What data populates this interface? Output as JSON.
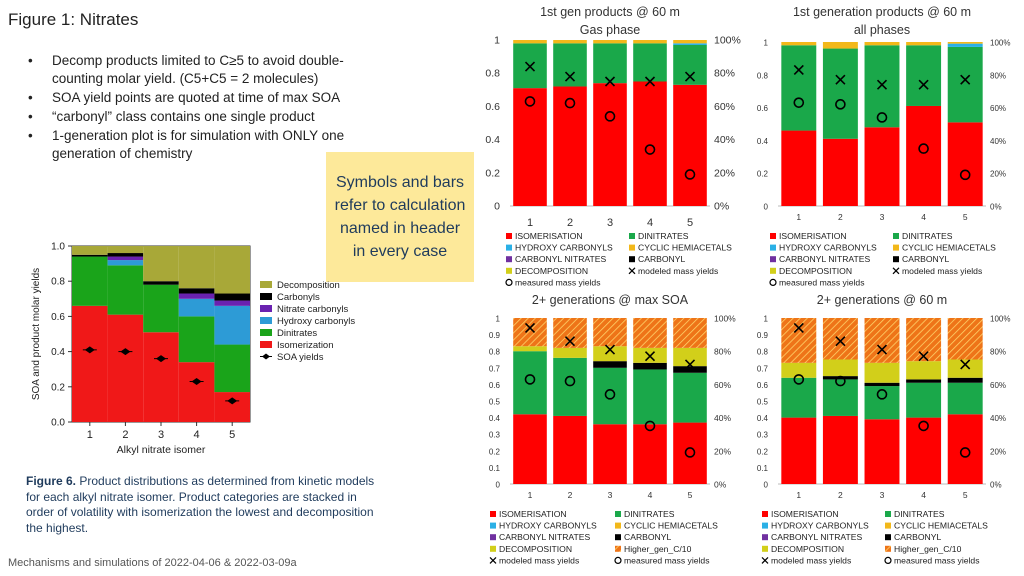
{
  "title": "Figure 1: Nitrates",
  "bullets": [
    "Decomp products limited to C≥5 to avoid double-counting molar yield. (C5+C5 = 2 molecules)",
    "SOA yield points are quoted at time of max SOA",
    "“carbonyl” class contains one single product",
    "1-generation plot is for simulation with ONLY one generation of chemistry"
  ],
  "note": "Symbols and bars refer to calculation named in header in every case",
  "footer": "Mechanisms and simulations of 2022-04-06  & 2022-03-09a",
  "caption": {
    "lead": "Figure 6.",
    "text": "Product distributions as determined from kinetic models for each alkyl nitrate isomer. Product categories are stacked in order of volatility with isomerization the lowest and decomposition the highest."
  },
  "colors": {
    "isomerisation": "#ff0000",
    "dinitrates": "#1aa84a",
    "hydroxy_carbonyls": "#2ab0e6",
    "cyclic_hemiacetals": "#f2b81a",
    "carbonyl_nitrates": "#7030a0",
    "carbonyl": "#000000",
    "decomposition": "#d2cf1a",
    "higher_gen": "#ee7418",
    "pub_decomposition": "#a8a838",
    "pub_carbonyls": "#000000",
    "pub_nitrate_carbonyls": "#6a22b0",
    "pub_hydroxy_carbonyls": "#2d9bd6",
    "pub_dinitrates": "#1aa41a",
    "pub_isomerization": "#f01818"
  },
  "chart_data": [
    {
      "type": "bar",
      "stacked": true,
      "title": "Figure 6.",
      "xlabel": "Alkyl nitrate isomer",
      "ylabel": "SOA and product molar yields",
      "categories": [
        "1",
        "2",
        "3",
        "4",
        "5"
      ],
      "ylim": [
        0,
        1
      ],
      "yticks": [
        "0.0",
        "0.2",
        "0.4",
        "0.6",
        "0.8",
        "1.0"
      ],
      "legend_position": "right",
      "series": [
        {
          "name": "Isomerization",
          "values": [
            0.66,
            0.61,
            0.51,
            0.34,
            0.17
          ]
        },
        {
          "name": "Dinitrates",
          "values": [
            0.28,
            0.28,
            0.27,
            0.26,
            0.27
          ]
        },
        {
          "name": "Hydroxy carbonyls",
          "values": [
            0.0,
            0.03,
            0.0,
            0.1,
            0.22
          ]
        },
        {
          "name": "Nitrate carbonyls",
          "values": [
            0.0,
            0.02,
            0.0,
            0.03,
            0.03
          ]
        },
        {
          "name": "Carbonyls",
          "values": [
            0.01,
            0.02,
            0.02,
            0.03,
            0.04
          ]
        },
        {
          "name": "Decomposition",
          "values": [
            0.05,
            0.04,
            0.2,
            0.24,
            0.27
          ]
        }
      ],
      "markers": {
        "name": "SOA yields",
        "values": [
          0.41,
          0.4,
          0.36,
          0.23,
          0.12
        ]
      }
    },
    {
      "type": "bar",
      "stacked": true,
      "title": "1st gen products @ 60 m\nGas phase",
      "categories": [
        "1",
        "2",
        "3",
        "4",
        "5"
      ],
      "ylim": [
        0,
        1
      ],
      "yticks_left": [
        "0",
        "0.2",
        "0.4",
        "0.6",
        "0.8",
        "1"
      ],
      "yticks_right": [
        "0%",
        "20%",
        "40%",
        "60%",
        "80%",
        "100%"
      ],
      "series": [
        {
          "name": "ISOMERISATION",
          "values": [
            0.71,
            0.72,
            0.74,
            0.75,
            0.73
          ]
        },
        {
          "name": "DINITRATES",
          "values": [
            0.27,
            0.26,
            0.24,
            0.23,
            0.24
          ]
        },
        {
          "name": "HYDROXY CARBONYLS",
          "values": [
            0.0,
            0.0,
            0.0,
            0.0,
            0.01
          ]
        },
        {
          "name": "CYCLIC HEMIACETALS",
          "values": [
            0.02,
            0.02,
            0.02,
            0.02,
            0.02
          ]
        },
        {
          "name": "CARBONYL NITRATES",
          "values": [
            0,
            0,
            0,
            0,
            0
          ]
        },
        {
          "name": "CARBONYL",
          "values": [
            0,
            0,
            0,
            0,
            0
          ]
        },
        {
          "name": "DECOMPOSITION",
          "values": [
            0,
            0,
            0,
            0,
            0
          ]
        }
      ],
      "modeled_mass_yields": {
        "name": "modeled mass yields",
        "values": [
          0.84,
          0.78,
          0.75,
          0.75,
          0.78
        ]
      },
      "measured_mass_yields": {
        "name": "measured mass yields",
        "values": [
          0.63,
          0.62,
          0.54,
          0.34,
          0.19
        ]
      }
    },
    {
      "type": "bar",
      "stacked": true,
      "title": "1st generation products @ 60 m\nall phases",
      "categories": [
        "1",
        "2",
        "3",
        "4",
        "5"
      ],
      "ylim": [
        0,
        1
      ],
      "yticks_left": [
        "0",
        "0.2",
        "0.4",
        "0.6",
        "0.8",
        "1"
      ],
      "yticks_right": [
        "0%",
        "20%",
        "40%",
        "60%",
        "80%",
        "100%"
      ],
      "series": [
        {
          "name": "ISOMERISATION",
          "values": [
            0.46,
            0.41,
            0.48,
            0.61,
            0.51
          ]
        },
        {
          "name": "DINITRATES",
          "values": [
            0.52,
            0.55,
            0.5,
            0.37,
            0.46
          ]
        },
        {
          "name": "HYDROXY CARBONYLS",
          "values": [
            0.0,
            0.0,
            0.0,
            0.0,
            0.02
          ]
        },
        {
          "name": "CYCLIC HEMIACETALS",
          "values": [
            0.02,
            0.04,
            0.02,
            0.02,
            0.01
          ]
        },
        {
          "name": "CARBONYL NITRATES",
          "values": [
            0,
            0,
            0,
            0,
            0
          ]
        },
        {
          "name": "CARBONYL",
          "values": [
            0,
            0,
            0,
            0,
            0
          ]
        },
        {
          "name": "DECOMPOSITION",
          "values": [
            0,
            0,
            0,
            0,
            0
          ]
        }
      ],
      "modeled_mass_yields": {
        "name": "modeled mass yields",
        "values": [
          0.83,
          0.77,
          0.74,
          0.74,
          0.77
        ]
      },
      "measured_mass_yields": {
        "name": "measured mass yields",
        "values": [
          0.63,
          0.62,
          0.54,
          0.35,
          0.19
        ]
      }
    },
    {
      "type": "bar",
      "stacked": true,
      "title": "2+ generations @ max SOA",
      "categories": [
        "1",
        "2",
        "3",
        "4",
        "5"
      ],
      "ylim": [
        0,
        1
      ],
      "yticks_left": [
        "0",
        "0.1",
        "0.2",
        "0.3",
        "0.4",
        "0.5",
        "0.6",
        "0.7",
        "0.8",
        "0.9",
        "1"
      ],
      "yticks_right": [
        "0%",
        "20%",
        "40%",
        "60%",
        "80%",
        "100%"
      ],
      "series": [
        {
          "name": "ISOMERISATION",
          "values": [
            0.42,
            0.41,
            0.36,
            0.36,
            0.37
          ]
        },
        {
          "name": "DINITRATES",
          "values": [
            0.38,
            0.35,
            0.34,
            0.33,
            0.3
          ]
        },
        {
          "name": "HYDROXY CARBONYLS",
          "values": [
            0,
            0,
            0,
            0,
            0
          ]
        },
        {
          "name": "CYCLIC HEMIACETALS",
          "values": [
            0.0,
            0.0,
            0.0,
            0.0,
            0.0
          ]
        },
        {
          "name": "CARBONYL NITRATES",
          "values": [
            0,
            0,
            0,
            0,
            0
          ]
        },
        {
          "name": "CARBONYL",
          "values": [
            0.0,
            0.0,
            0.04,
            0.04,
            0.04
          ]
        },
        {
          "name": "DECOMPOSITION",
          "values": [
            0.03,
            0.06,
            0.09,
            0.09,
            0.11
          ]
        },
        {
          "name": "Higher_gen_C/10",
          "values": [
            0.17,
            0.18,
            0.17,
            0.18,
            0.18
          ]
        }
      ],
      "modeled_mass_yields": {
        "name": "modeled mass yields",
        "values": [
          0.94,
          0.86,
          0.81,
          0.77,
          0.72
        ]
      },
      "measured_mass_yields": {
        "name": "measured mass yields",
        "values": [
          0.63,
          0.62,
          0.54,
          0.35,
          0.19
        ]
      }
    },
    {
      "type": "bar",
      "stacked": true,
      "title": "2+ generations @ 60 m",
      "categories": [
        "1",
        "2",
        "3",
        "4",
        "5"
      ],
      "ylim": [
        0,
        1
      ],
      "yticks_left": [
        "0",
        "0.1",
        "0.2",
        "0.3",
        "0.4",
        "0.5",
        "0.6",
        "0.7",
        "0.8",
        "0.9",
        "1"
      ],
      "yticks_right": [
        "0%",
        "20%",
        "40%",
        "60%",
        "80%",
        "100%"
      ],
      "series": [
        {
          "name": "ISOMERISATION",
          "values": [
            0.4,
            0.41,
            0.39,
            0.4,
            0.42
          ]
        },
        {
          "name": "DINITRATES",
          "values": [
            0.24,
            0.22,
            0.2,
            0.21,
            0.19
          ]
        },
        {
          "name": "HYDROXY CARBONYLS",
          "values": [
            0,
            0,
            0,
            0,
            0
          ]
        },
        {
          "name": "CYCLIC HEMIACETALS",
          "values": [
            0,
            0,
            0,
            0,
            0
          ]
        },
        {
          "name": "CARBONYL NITRATES",
          "values": [
            0,
            0,
            0,
            0,
            0
          ]
        },
        {
          "name": "CARBONYL",
          "values": [
            0.0,
            0.02,
            0.02,
            0.02,
            0.03
          ]
        },
        {
          "name": "DECOMPOSITION",
          "values": [
            0.09,
            0.1,
            0.12,
            0.11,
            0.11
          ]
        },
        {
          "name": "Higher_gen_C/10",
          "values": [
            0.27,
            0.25,
            0.27,
            0.26,
            0.25
          ]
        }
      ],
      "modeled_mass_yields": {
        "name": "modeled mass yields",
        "values": [
          0.94,
          0.86,
          0.81,
          0.77,
          0.72
        ]
      },
      "measured_mass_yields": {
        "name": "measured mass yields",
        "values": [
          0.63,
          0.62,
          0.54,
          0.35,
          0.19
        ]
      }
    }
  ]
}
